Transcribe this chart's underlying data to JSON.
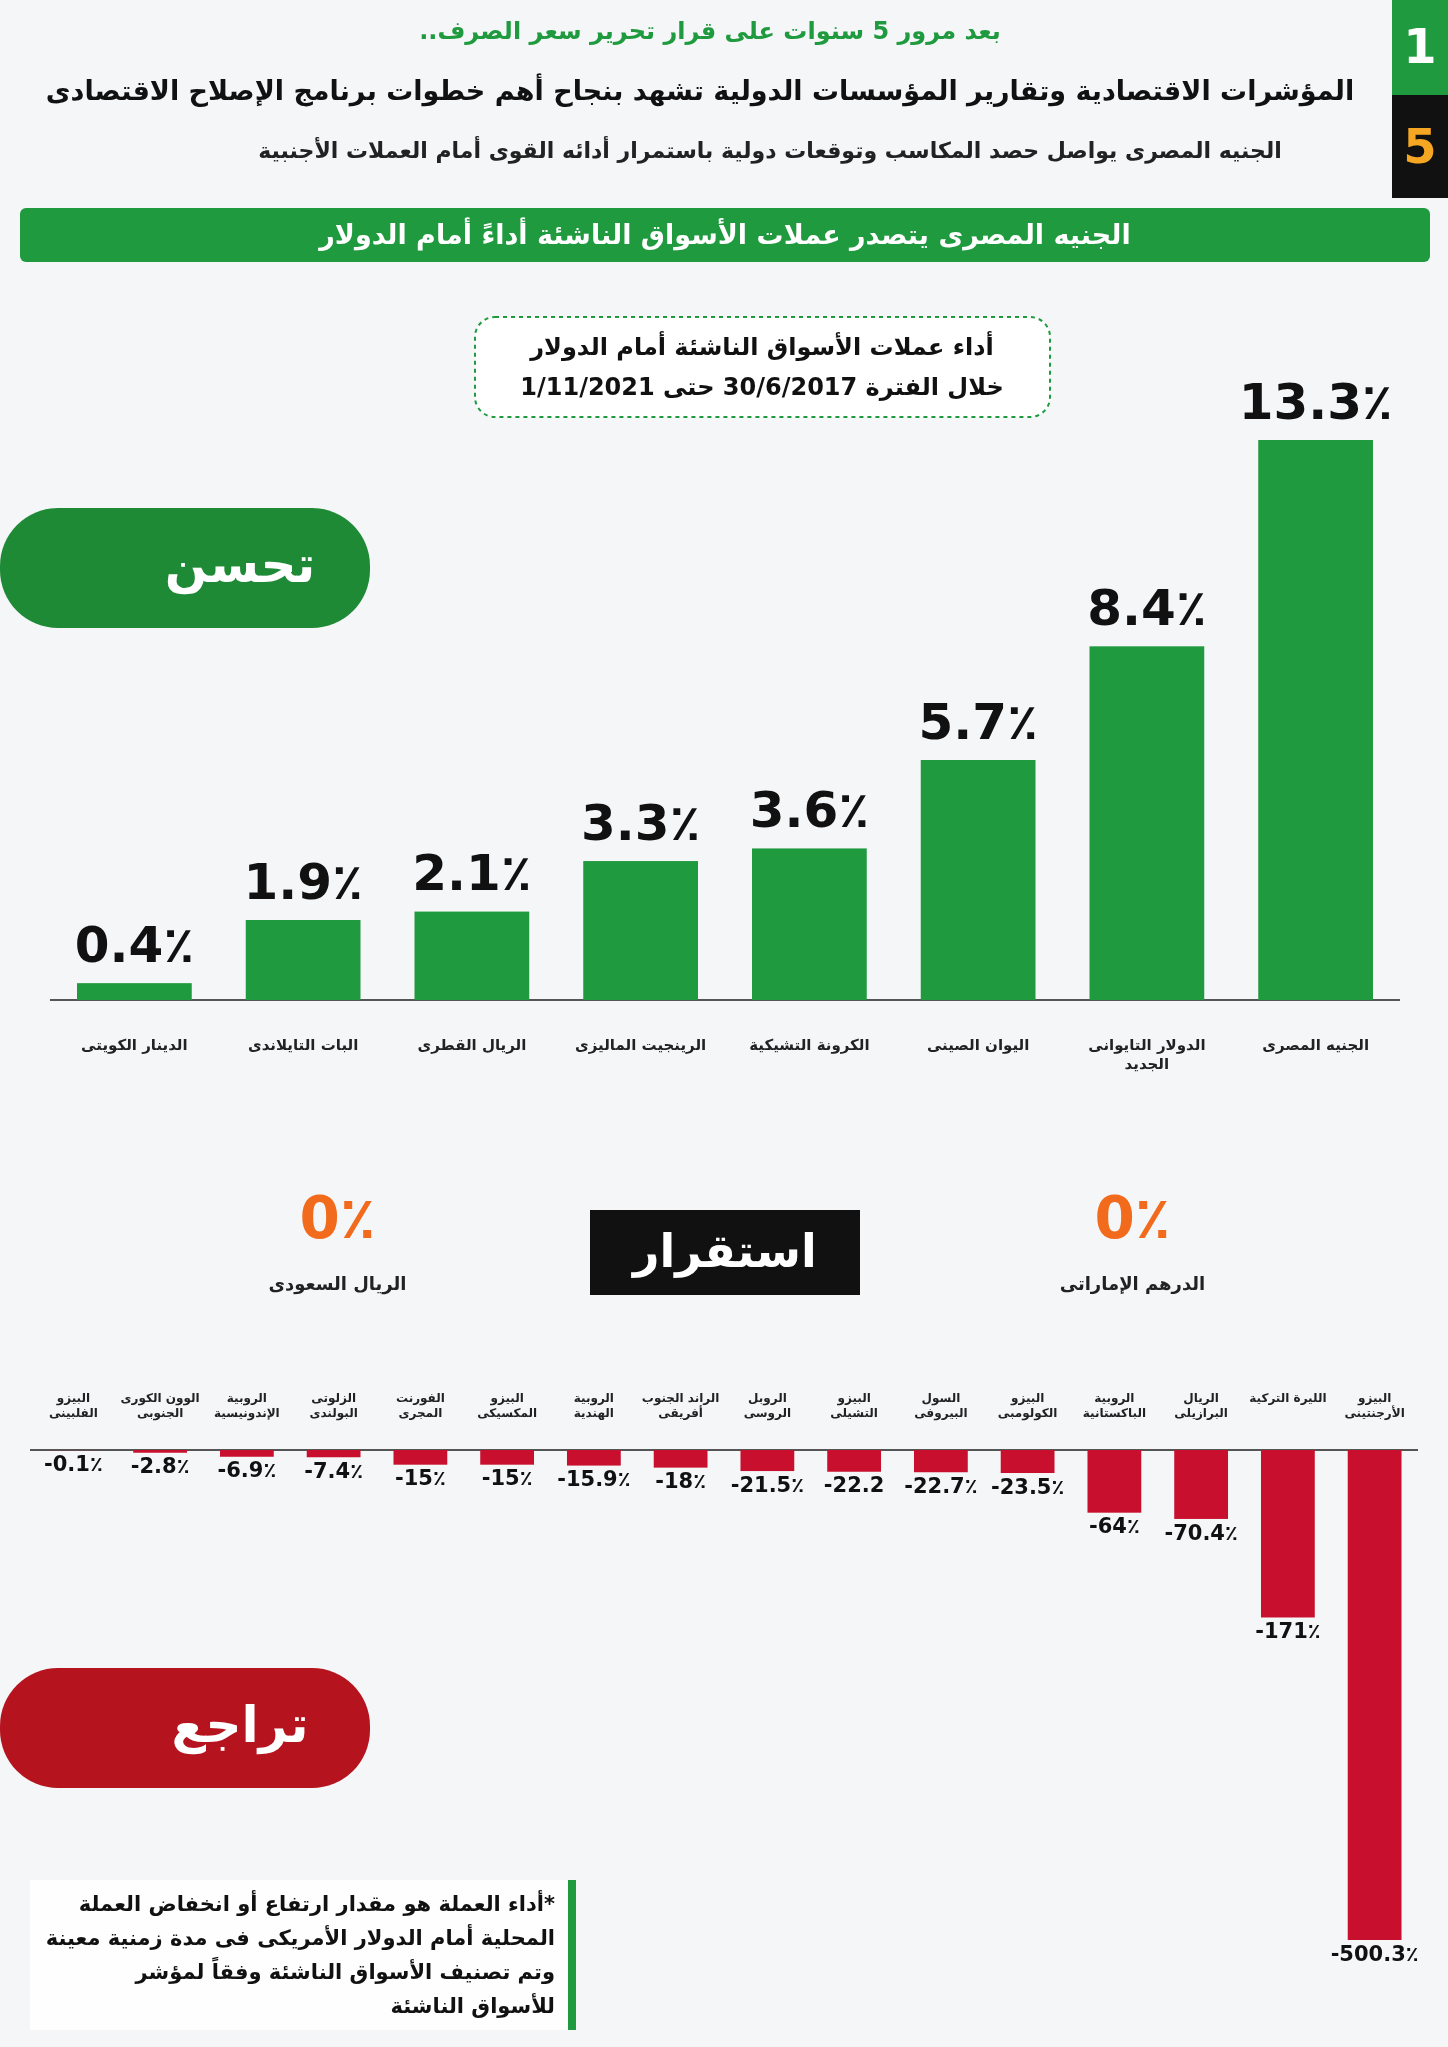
{
  "chart_data": [
    {
      "type": "bar",
      "title": "المؤشرات الاقتصادية وتقارير المؤسسات الدولية تشهد بنجاح أهم خطوات برنامج الإصلاح الاقتصادى",
      "subtitle": "الجنيه المصرى يواصل حصد المكاسب وتوقعات دولية باستمرار أدائه القوى أمام العملات الأجنبية",
      "annotations": [
        "بعد مرور 5 سنوات على قرار تحرير سعر الصرف..",
        "الجنيه المصرى يتصدر عملات الأسواق الناشئة أداءً أمام الدولار",
        "أداء عملات الأسواق الناشئة أمام الدولار",
        "خلال الفترة 30/6/2017 حتى 1/11/2021",
        "تحسن",
        "1",
        "5"
      ],
      "categories": [
        "الدينار الكويتى",
        "البات التايلاندى",
        "الريال القطرى",
        "الرينجيت الماليزى",
        "الكرونة التشيكية",
        "اليوان الصينى",
        "الدولار التايوانى الجديد",
        "الجنيه المصرى"
      ],
      "values": [
        0.4,
        1.9,
        2.1,
        3.3,
        3.6,
        5.7,
        8.4,
        13.3
      ],
      "value_labels": [
        "0.4٪",
        "1.9٪",
        "2.1٪",
        "3.3٪",
        "3.6٪",
        "5.7٪",
        "8.4٪",
        "13.3٪"
      ],
      "color": "#1f9a3e"
    },
    {
      "type": "other",
      "title": "استقرار",
      "categories": [
        "الريال السعودى",
        "الدرهم الإماراتى"
      ],
      "values": [
        0,
        0
      ],
      "value_labels": [
        "0٪",
        "0٪"
      ],
      "color": "#f26a1b"
    },
    {
      "type": "bar",
      "title": "تراجع",
      "annotations": [
        "*أداء العملة هو مقدار ارتفاع أو انخفاض العملة المحلية أمام الدولار الأمريكى فى مدة زمنية معينة وتم تصنيف الأسواق الناشئة وفقاً لمؤشر للأسواق الناشئة"
      ],
      "categories": [
        "البيزو الفلبينى",
        "الوون الكورى الجنوبى",
        "الروبية الإندونيسية",
        "الزلوتى البولندى",
        "الفورنت المجرى",
        "البيزو المكسيكى",
        "الروبية الهندية",
        "الراند الجنوب أفريقى",
        "الروبل الروسى",
        "البيزو التشيلى",
        "السول البيروفى",
        "البيزو الكولومبى",
        "الروبية الباكستانية",
        "الريال البرازيلى",
        "الليرة التركية",
        "البيزو الأرجنتينى"
      ],
      "values": [
        -0.1,
        -2.8,
        -6.9,
        -7.4,
        -15,
        -15,
        -15.9,
        -18,
        -21.5,
        -22.2,
        -22.7,
        -23.5,
        -64,
        -70.4,
        -171,
        -500.3
      ],
      "value_labels": [
        "-0.1٪",
        "-2.8٪",
        "-6.9٪",
        "-7.4٪",
        "-15٪",
        "-15٪",
        "-15.9٪",
        "-18٪",
        "-21.5٪",
        "-22.2",
        "-22.7٪",
        "-23.5٪",
        "-64٪",
        "-70.4٪",
        "-171٪",
        "-500.3٪"
      ],
      "color": "#c8102e"
    }
  ]
}
